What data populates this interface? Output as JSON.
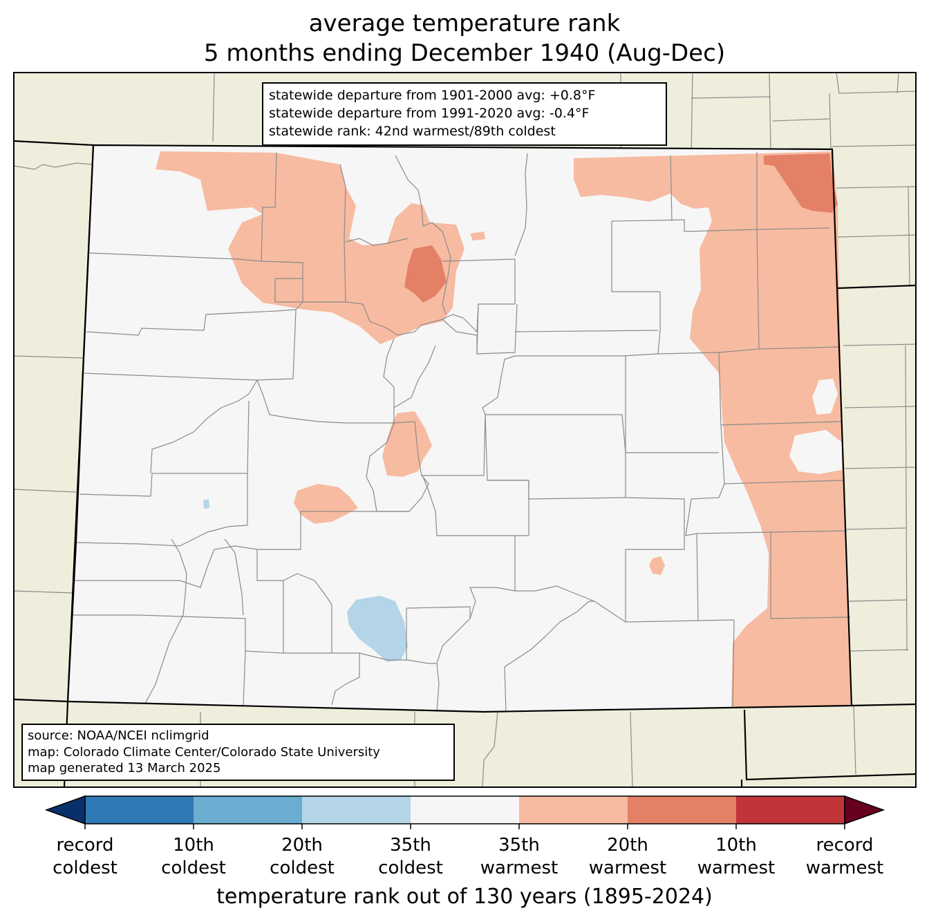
{
  "title": {
    "line1": "average temperature rank",
    "line2": "5 months ending December 1940 (Aug-Dec)"
  },
  "stats": {
    "line1": "statewide departure from 1901-2000 avg: +0.8°F",
    "line2": "statewide departure from 1991-2020 avg: -0.4°F",
    "line3": "statewide rank: 42nd warmest/89th coldest"
  },
  "source": {
    "line1": "source: NOAA/NCEI nclimgrid",
    "line2": "map: Colorado Climate Center/Colorado State University",
    "line3": "map generated 13 March 2025"
  },
  "colorbar": {
    "title": "temperature rank out of 130 years (1895-2024)",
    "colors": [
      "#08306b",
      "#2f79b5",
      "#6bacd1",
      "#b3d5e7",
      "#f6f6f6",
      "#f7bba1",
      "#e48066",
      "#c13539",
      "#67001f"
    ],
    "labels": [
      {
        "top": "record",
        "bottom": "coldest"
      },
      {
        "top": "10th",
        "bottom": "coldest"
      },
      {
        "top": "20th",
        "bottom": "coldest"
      },
      {
        "top": "35th",
        "bottom": "coldest"
      },
      {
        "top": "35th",
        "bottom": "warmest"
      },
      {
        "top": "20th",
        "bottom": "warmest"
      },
      {
        "top": "10th",
        "bottom": "warmest"
      },
      {
        "top": "record",
        "bottom": "warmest"
      }
    ]
  },
  "map_colors": {
    "background": "#efeedc",
    "state_fill": "#f6f6f6",
    "county_line": "#8a8a8a",
    "state_line": "#000000"
  }
}
